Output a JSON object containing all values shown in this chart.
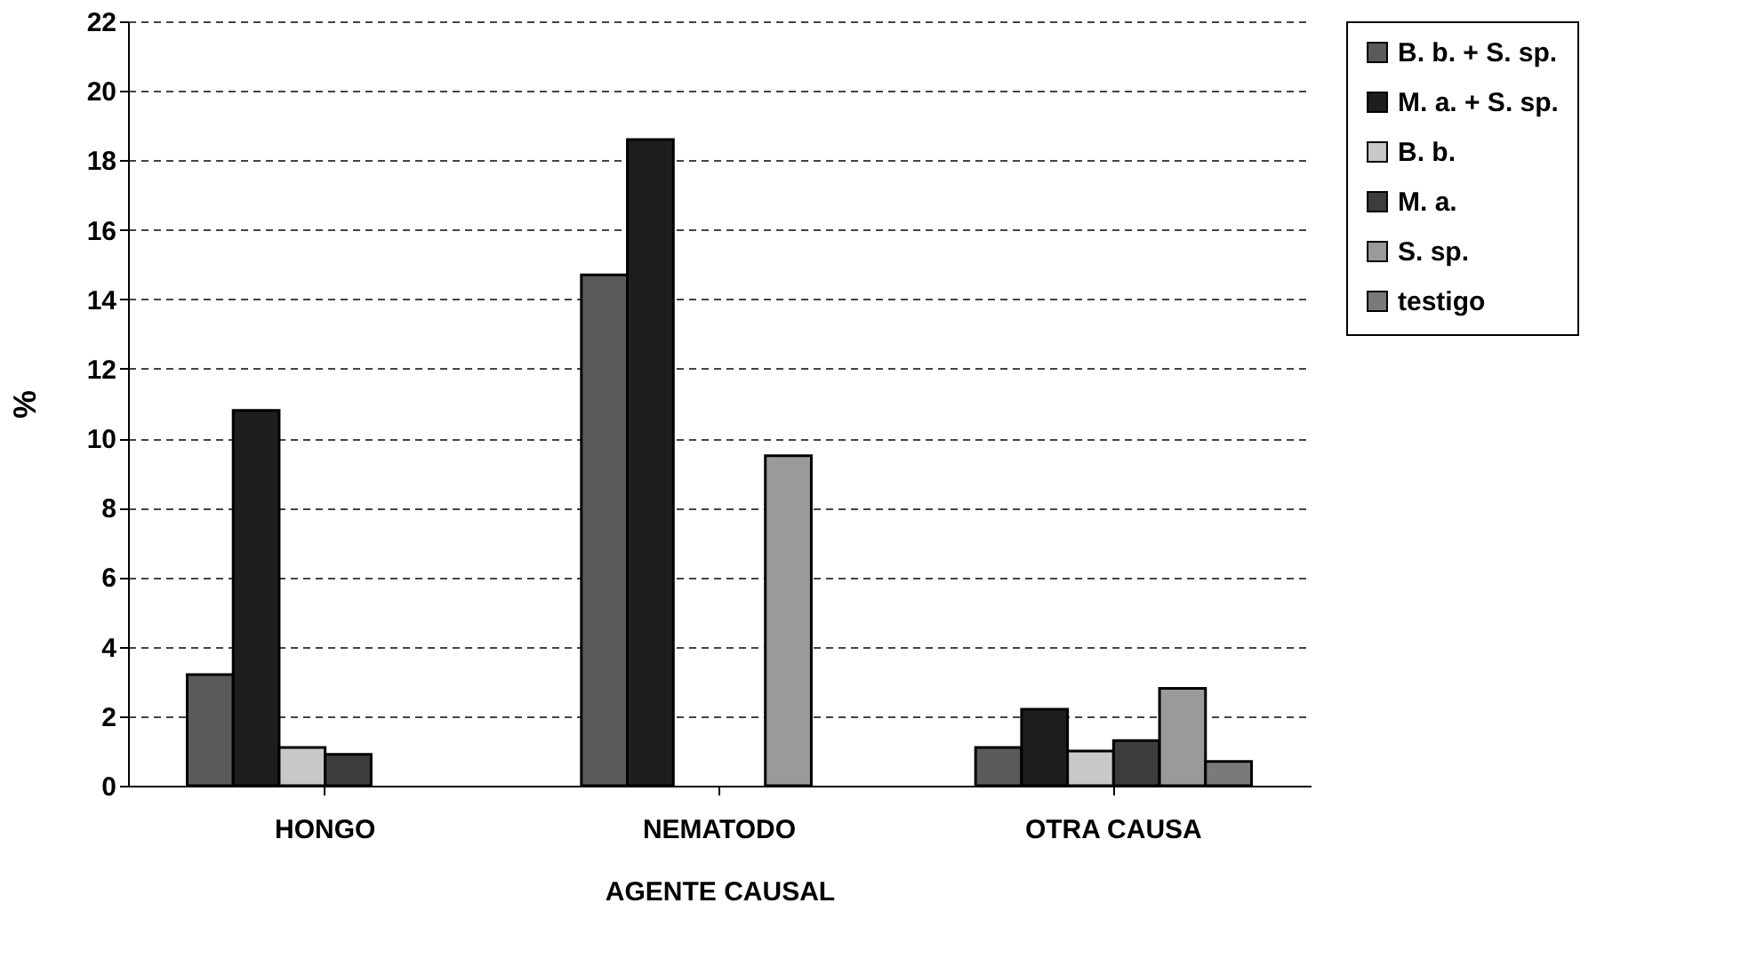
{
  "chart_data": {
    "type": "bar",
    "xlabel": "AGENTE CAUSAL",
    "ylabel": "%",
    "categories": [
      "HONGO",
      "NEMATODO",
      "OTRA CAUSA"
    ],
    "series": [
      {
        "name": "B. b. + S. sp.",
        "color": "#5a5a5a",
        "values": [
          3.2,
          14.7,
          1.1
        ]
      },
      {
        "name": "M. a. + S. sp.",
        "color": "#1e1e1e",
        "values": [
          10.8,
          18.6,
          2.2
        ]
      },
      {
        "name": "B. b.",
        "color": "#c8c8c8",
        "values": [
          1.1,
          null,
          1.0
        ]
      },
      {
        "name": "M. a.",
        "color": "#3c3c3c",
        "values": [
          0.9,
          null,
          1.3
        ]
      },
      {
        "name": "S. sp.",
        "color": "#9a9a9a",
        "values": [
          null,
          9.5,
          2.8
        ]
      },
      {
        "name": "testigo",
        "color": "#7a7a7a",
        "values": [
          null,
          null,
          0.7
        ]
      }
    ],
    "ylim": [
      0,
      22
    ],
    "yticks": [
      0,
      2,
      4,
      6,
      8,
      10,
      12,
      14,
      16,
      18,
      20,
      22
    ],
    "grid": "y",
    "legend": "right"
  }
}
